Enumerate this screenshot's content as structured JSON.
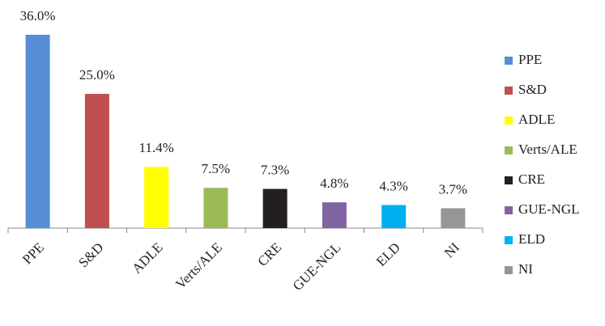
{
  "chart_data": {
    "type": "bar",
    "categories": [
      "PPE",
      "S&D",
      "ADLE",
      "Verts/ALE",
      "CRE",
      "GUE-NGL",
      "ELD",
      "NI"
    ],
    "values": [
      36.0,
      25.0,
      11.4,
      7.5,
      7.3,
      4.8,
      4.3,
      3.7
    ],
    "value_labels": [
      "36.0%",
      "25.0%",
      "11.4%",
      "7.5%",
      "7.3%",
      "4.8%",
      "4.3%",
      "3.7%"
    ],
    "colors": [
      "#558ed5",
      "#c0504d",
      "#ffff00",
      "#9bbb59",
      "#231f20",
      "#8064a2",
      "#00b0f0",
      "#969696"
    ],
    "ylim": [
      0,
      36
    ],
    "legend": "right"
  }
}
